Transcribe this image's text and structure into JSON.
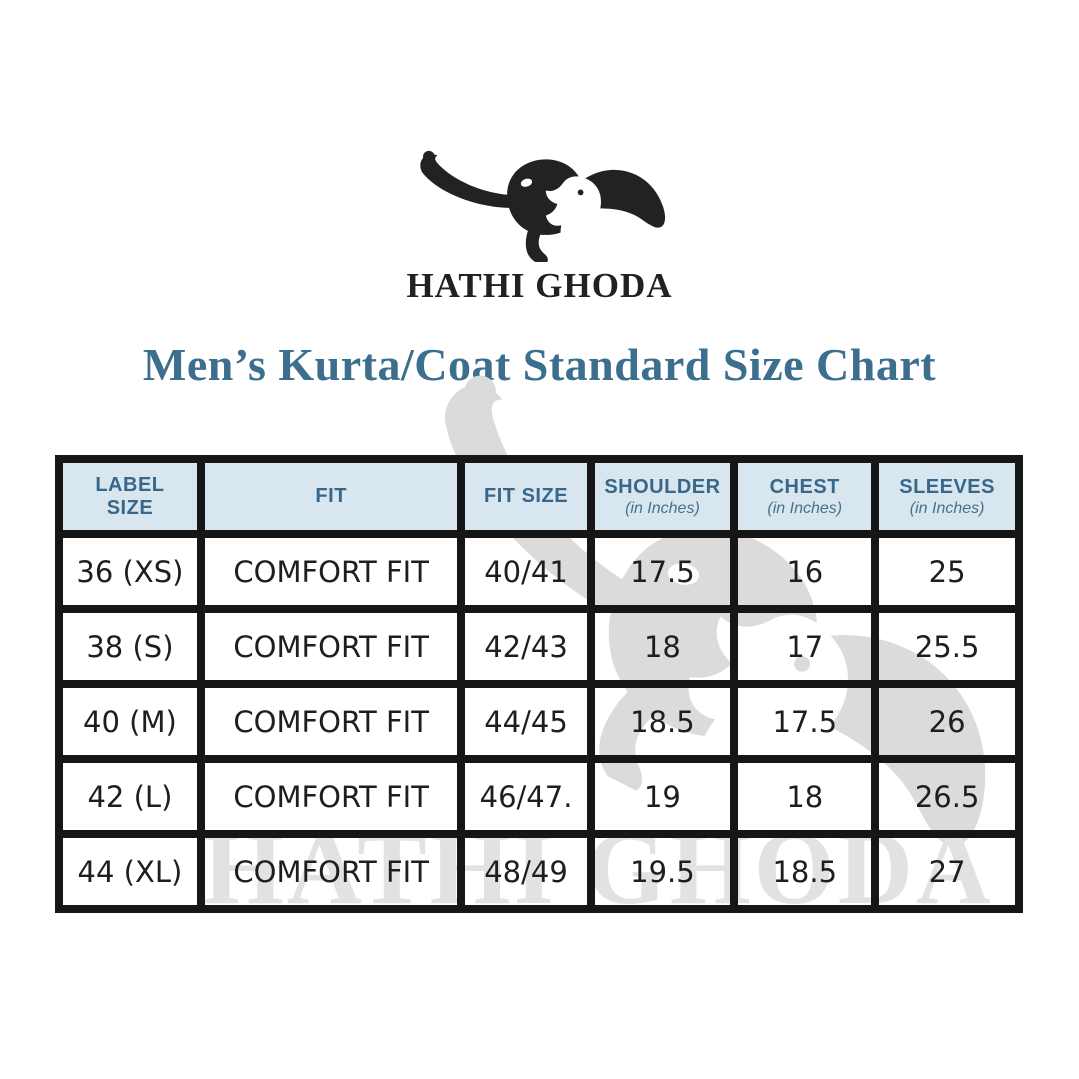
{
  "brand": {
    "name": "HATHI GHODA",
    "logo": "elephant-horse-logo"
  },
  "title": "Men’s Kurta/Coat Standard Size Chart",
  "watermark": {
    "text": "HATHI GHODA",
    "logo": "elephant-horse-logo"
  },
  "colors": {
    "title_blue": "#3c6e8e",
    "header_bg": "#d8e7ef",
    "header_text": "#39678a",
    "border_black": "#161616",
    "watermark_gray": "#dbdbdb"
  },
  "table": {
    "columns": [
      {
        "id": "label-size",
        "label": "LABEL\nSIZE",
        "sub": ""
      },
      {
        "id": "fit",
        "label": "FIT",
        "sub": ""
      },
      {
        "id": "fit-size",
        "label": "FIT SIZE",
        "sub": ""
      },
      {
        "id": "shoulder",
        "label": "SHOULDER",
        "sub": "(in Inches)"
      },
      {
        "id": "chest",
        "label": "CHEST",
        "sub": "(in Inches)"
      },
      {
        "id": "sleeves",
        "label": "SLEEVES",
        "sub": "(in Inches)"
      }
    ],
    "rows": [
      {
        "cells": [
          "36 (XS)",
          "COMFORT FIT",
          "40/41",
          "17.5",
          "16",
          "25"
        ]
      },
      {
        "cells": [
          "38 (S)",
          "COMFORT FIT",
          "42/43",
          "18",
          "17",
          "25.5"
        ]
      },
      {
        "cells": [
          "40 (M)",
          "COMFORT FIT",
          "44/45",
          "18.5",
          "17.5",
          "26"
        ]
      },
      {
        "cells": [
          "42 (L)",
          "COMFORT FIT",
          "46/47.",
          "19",
          "18",
          "26.5"
        ]
      },
      {
        "cells": [
          "44 (XL)",
          "COMFORT FIT",
          "48/49",
          "19.5",
          "18.5",
          "27"
        ]
      }
    ]
  },
  "chart_data": {
    "type": "table",
    "title": "Men’s Kurta/Coat Standard Size Chart",
    "columns": [
      "LABEL SIZE",
      "FIT",
      "FIT SIZE",
      "SHOULDER (in Inches)",
      "CHEST (in Inches)",
      "SLEEVES (in Inches)"
    ],
    "rows": [
      [
        "36 (XS)",
        "COMFORT FIT",
        "40/41",
        17.5,
        16,
        25
      ],
      [
        "38 (S)",
        "COMFORT FIT",
        "42/43",
        18,
        17,
        25.5
      ],
      [
        "40 (M)",
        "COMFORT FIT",
        "44/45",
        18.5,
        17.5,
        26
      ],
      [
        "42 (L)",
        "COMFORT FIT",
        "46/47.",
        19,
        18,
        26.5
      ],
      [
        "44 (XL)",
        "COMFORT FIT",
        "48/49",
        19.5,
        18.5,
        27
      ]
    ]
  }
}
